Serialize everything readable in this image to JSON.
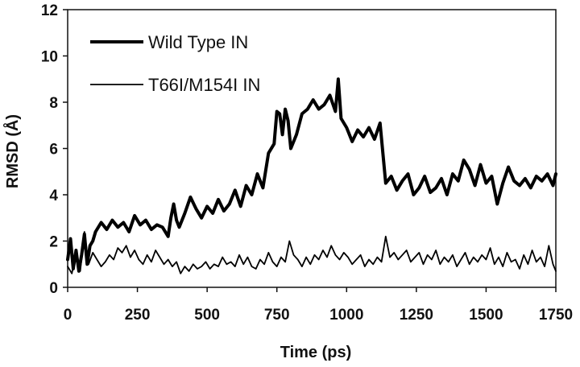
{
  "chart_data": {
    "type": "line",
    "title": "",
    "xlabel": "Time (ps)",
    "ylabel": "RMSD (Å)",
    "xlim": [
      0,
      1750
    ],
    "ylim": [
      0,
      12
    ],
    "xticks": [
      0,
      250,
      500,
      750,
      1000,
      1250,
      1500,
      1750
    ],
    "yticks": [
      0,
      2,
      4,
      6,
      8,
      10,
      12
    ],
    "grid": false,
    "legend_position": "top-left",
    "series": [
      {
        "name": "Wild Type IN",
        "color": "#000000",
        "style": "thick",
        "x": [
          0,
          10,
          20,
          30,
          40,
          50,
          60,
          70,
          80,
          90,
          100,
          120,
          140,
          160,
          180,
          200,
          220,
          240,
          260,
          280,
          300,
          320,
          340,
          360,
          370,
          380,
          390,
          400,
          420,
          440,
          460,
          480,
          500,
          520,
          540,
          560,
          580,
          600,
          620,
          640,
          660,
          680,
          700,
          720,
          740,
          750,
          760,
          770,
          780,
          790,
          800,
          820,
          840,
          860,
          880,
          900,
          920,
          940,
          960,
          970,
          980,
          1000,
          1020,
          1040,
          1060,
          1080,
          1100,
          1120,
          1130,
          1140,
          1160,
          1180,
          1200,
          1220,
          1240,
          1260,
          1280,
          1300,
          1320,
          1340,
          1360,
          1380,
          1400,
          1420,
          1440,
          1460,
          1480,
          1500,
          1520,
          1540,
          1560,
          1580,
          1600,
          1620,
          1640,
          1660,
          1680,
          1700,
          1720,
          1740,
          1750
        ],
        "values": [
          1.2,
          2.1,
          0.8,
          1.6,
          0.7,
          1.4,
          2.3,
          1.0,
          1.8,
          2.0,
          2.4,
          2.8,
          2.5,
          2.9,
          2.6,
          2.8,
          2.4,
          3.1,
          2.7,
          2.9,
          2.5,
          2.7,
          2.6,
          2.2,
          3.0,
          3.6,
          2.9,
          2.6,
          3.2,
          3.9,
          3.4,
          3.0,
          3.5,
          3.2,
          3.8,
          3.3,
          3.6,
          4.2,
          3.5,
          4.4,
          4.0,
          4.9,
          4.3,
          5.8,
          6.2,
          7.6,
          7.5,
          6.6,
          7.7,
          7.2,
          6.0,
          6.6,
          7.5,
          7.7,
          8.1,
          7.7,
          7.9,
          8.3,
          7.6,
          9.0,
          7.3,
          6.9,
          6.3,
          6.8,
          6.5,
          6.9,
          6.4,
          7.1,
          5.8,
          4.5,
          4.8,
          4.2,
          4.6,
          4.9,
          4.0,
          4.3,
          4.8,
          4.1,
          4.3,
          4.7,
          4.0,
          4.9,
          4.6,
          5.5,
          5.1,
          4.4,
          5.3,
          4.5,
          4.8,
          3.6,
          4.5,
          5.2,
          4.6,
          4.4,
          4.7,
          4.3,
          4.8,
          4.6,
          4.9,
          4.4,
          4.9
        ]
      },
      {
        "name": "T66I/M154I IN",
        "color": "#000000",
        "style": "thin",
        "x": [
          0,
          15,
          30,
          45,
          60,
          75,
          90,
          105,
          120,
          135,
          150,
          165,
          180,
          195,
          210,
          225,
          240,
          255,
          270,
          285,
          300,
          315,
          330,
          345,
          360,
          375,
          390,
          405,
          420,
          435,
          450,
          465,
          480,
          495,
          510,
          525,
          540,
          555,
          570,
          585,
          600,
          615,
          630,
          645,
          660,
          675,
          690,
          705,
          720,
          735,
          750,
          765,
          780,
          795,
          810,
          825,
          840,
          855,
          870,
          885,
          900,
          915,
          930,
          945,
          960,
          975,
          990,
          1005,
          1020,
          1035,
          1050,
          1065,
          1080,
          1095,
          1110,
          1125,
          1140,
          1155,
          1170,
          1185,
          1200,
          1215,
          1230,
          1245,
          1260,
          1275,
          1290,
          1305,
          1320,
          1335,
          1350,
          1365,
          1380,
          1395,
          1410,
          1425,
          1440,
          1455,
          1470,
          1485,
          1500,
          1515,
          1530,
          1545,
          1560,
          1575,
          1590,
          1605,
          1620,
          1635,
          1650,
          1665,
          1680,
          1695,
          1710,
          1725,
          1740,
          1750
        ],
        "values": [
          0.9,
          0.6,
          1.5,
          0.7,
          2.4,
          1.0,
          1.5,
          1.2,
          0.9,
          1.1,
          1.4,
          1.2,
          1.7,
          1.5,
          1.8,
          1.3,
          1.6,
          1.2,
          1.0,
          1.4,
          1.1,
          1.6,
          1.3,
          1.0,
          1.2,
          0.9,
          1.1,
          0.6,
          0.9,
          0.7,
          1.0,
          0.8,
          0.9,
          1.1,
          0.8,
          1.0,
          0.9,
          1.3,
          1.0,
          1.1,
          0.9,
          1.4,
          1.0,
          1.3,
          0.9,
          0.8,
          1.2,
          1.0,
          1.5,
          1.1,
          0.9,
          1.3,
          1.1,
          2.0,
          1.4,
          1.2,
          0.9,
          1.3,
          1.0,
          1.4,
          1.2,
          1.6,
          1.3,
          1.8,
          1.4,
          1.2,
          1.5,
          1.3,
          1.0,
          1.2,
          1.4,
          0.9,
          1.2,
          1.0,
          1.3,
          1.1,
          2.2,
          1.3,
          1.5,
          1.2,
          1.4,
          1.6,
          1.1,
          1.3,
          1.5,
          1.0,
          1.4,
          1.2,
          1.6,
          1.0,
          1.3,
          1.1,
          1.4,
          0.9,
          1.2,
          1.5,
          1.0,
          1.3,
          1.1,
          1.4,
          1.2,
          1.7,
          1.0,
          1.3,
          0.9,
          1.5,
          1.1,
          1.2,
          0.8,
          1.4,
          1.0,
          1.6,
          1.1,
          1.3,
          0.9,
          1.8,
          1.0,
          0.7
        ]
      }
    ]
  }
}
